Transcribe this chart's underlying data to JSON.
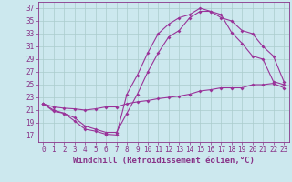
{
  "xlabel": "Windchill (Refroidissement éolien,°C)",
  "background_color": "#cce8ee",
  "grid_color": "#aacccc",
  "line_color": "#993399",
  "xlim": [
    -0.5,
    23.5
  ],
  "ylim": [
    16,
    38
  ],
  "xticks": [
    0,
    1,
    2,
    3,
    4,
    5,
    6,
    7,
    8,
    9,
    10,
    11,
    12,
    13,
    14,
    15,
    16,
    17,
    18,
    19,
    20,
    21,
    22,
    23
  ],
  "yticks": [
    17,
    19,
    21,
    23,
    25,
    27,
    29,
    31,
    33,
    35,
    37
  ],
  "line1_x": [
    0,
    1,
    2,
    3,
    4,
    5,
    6,
    7,
    8,
    9,
    10,
    11,
    12,
    13,
    14,
    15,
    16,
    17,
    18,
    19,
    20,
    21,
    22,
    23
  ],
  "line1_y": [
    22.0,
    21.0,
    20.5,
    19.3,
    18.0,
    17.7,
    17.2,
    17.1,
    23.5,
    26.5,
    30.0,
    33.0,
    34.5,
    35.5,
    36.0,
    37.0,
    36.5,
    36.0,
    33.2,
    31.5,
    29.5,
    29.0,
    25.5,
    25.0
  ],
  "line2_x": [
    0,
    1,
    2,
    3,
    4,
    5,
    6,
    7,
    8,
    9,
    10,
    11,
    12,
    13,
    14,
    15,
    16,
    17,
    18,
    19,
    20,
    21,
    22,
    23
  ],
  "line2_y": [
    22.0,
    20.8,
    20.5,
    19.8,
    18.5,
    18.0,
    17.5,
    17.5,
    20.5,
    23.5,
    27.0,
    30.0,
    32.5,
    33.5,
    35.5,
    36.5,
    36.5,
    35.5,
    35.0,
    33.5,
    33.0,
    31.0,
    29.5,
    25.5
  ],
  "line3_x": [
    0,
    1,
    2,
    3,
    4,
    5,
    6,
    7,
    8,
    9,
    10,
    11,
    12,
    13,
    14,
    15,
    16,
    17,
    18,
    19,
    20,
    21,
    22,
    23
  ],
  "line3_y": [
    22.0,
    21.5,
    21.3,
    21.2,
    21.0,
    21.2,
    21.5,
    21.5,
    22.0,
    22.3,
    22.5,
    22.8,
    23.0,
    23.2,
    23.5,
    24.0,
    24.2,
    24.5,
    24.5,
    24.5,
    25.0,
    25.0,
    25.2,
    24.5
  ],
  "marker": "D",
  "markersize": 2,
  "linewidth": 0.8,
  "tick_fontsize": 5.5,
  "label_fontsize": 6.5
}
